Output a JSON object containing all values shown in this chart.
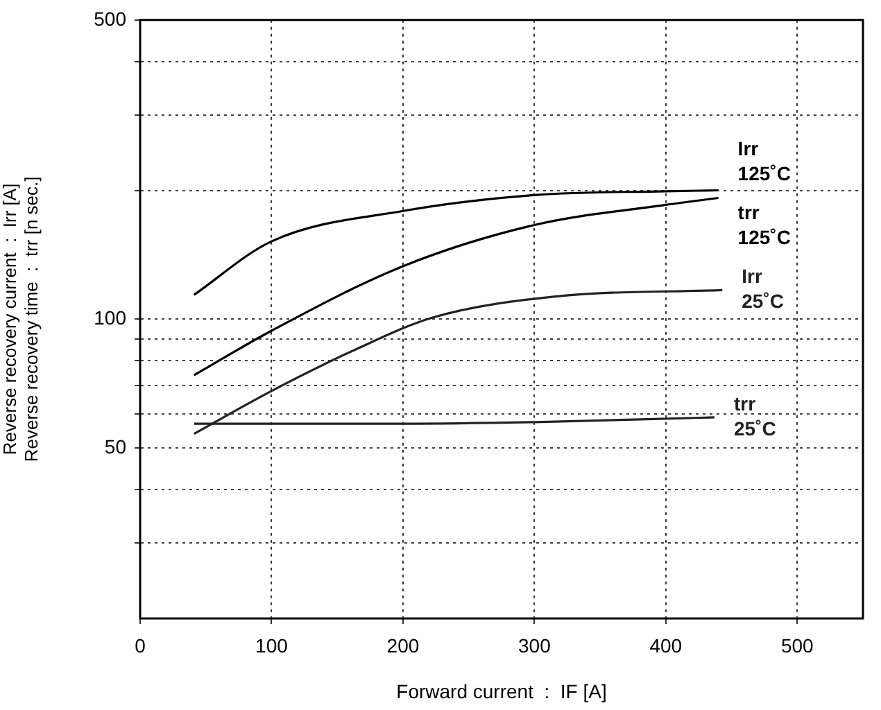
{
  "chart_data": {
    "type": "line",
    "xlabel": "Forward current  :  IF [A]",
    "ylabel": "Reverse recovery current  :  Irr [A]\nReverse recovery time  :  trr [n sec.]",
    "xlim": [
      0,
      550
    ],
    "xticks": [
      0,
      100,
      200,
      300,
      400,
      500
    ],
    "ylim": [
      20,
      500
    ],
    "yticks": [
      {
        "value": 30,
        "label": null
      },
      {
        "value": 40,
        "label": null
      },
      50,
      {
        "value": 60,
        "label": null
      },
      {
        "value": 70,
        "label": null
      },
      {
        "value": 80,
        "label": null
      },
      {
        "value": 90,
        "label": null
      },
      100,
      {
        "value": 200,
        "label": null
      },
      {
        "value": 300,
        "label": null
      },
      {
        "value": 400,
        "label": null
      },
      500
    ],
    "log": "y",
    "grid": true,
    "legend": false,
    "marker": "none",
    "line_style": "solid",
    "series": [
      {
        "name": "Irr\n125˚C",
        "color": "#000000",
        "x": [
          41,
          100,
          200,
          300,
          400,
          440
        ],
        "values": [
          114,
          152,
          179,
          195,
          199,
          200
        ]
      },
      {
        "name": "trr\n125˚C",
        "color": "#000000",
        "x": [
          41,
          100,
          200,
          300,
          400,
          440
        ],
        "values": [
          74,
          94,
          133,
          166,
          185,
          192
        ]
      },
      {
        "name": "Irr\n25˚C",
        "color": "#222222",
        "x": [
          41,
          100,
          164,
          223,
          316,
          443
        ],
        "values": [
          54,
          68,
          85,
          101,
          113,
          117
        ]
      },
      {
        "name": "trr\n25˚C",
        "color": "#222222",
        "x": [
          41,
          200,
          300,
          437
        ],
        "values": [
          57,
          57,
          57.5,
          59
        ]
      }
    ]
  }
}
